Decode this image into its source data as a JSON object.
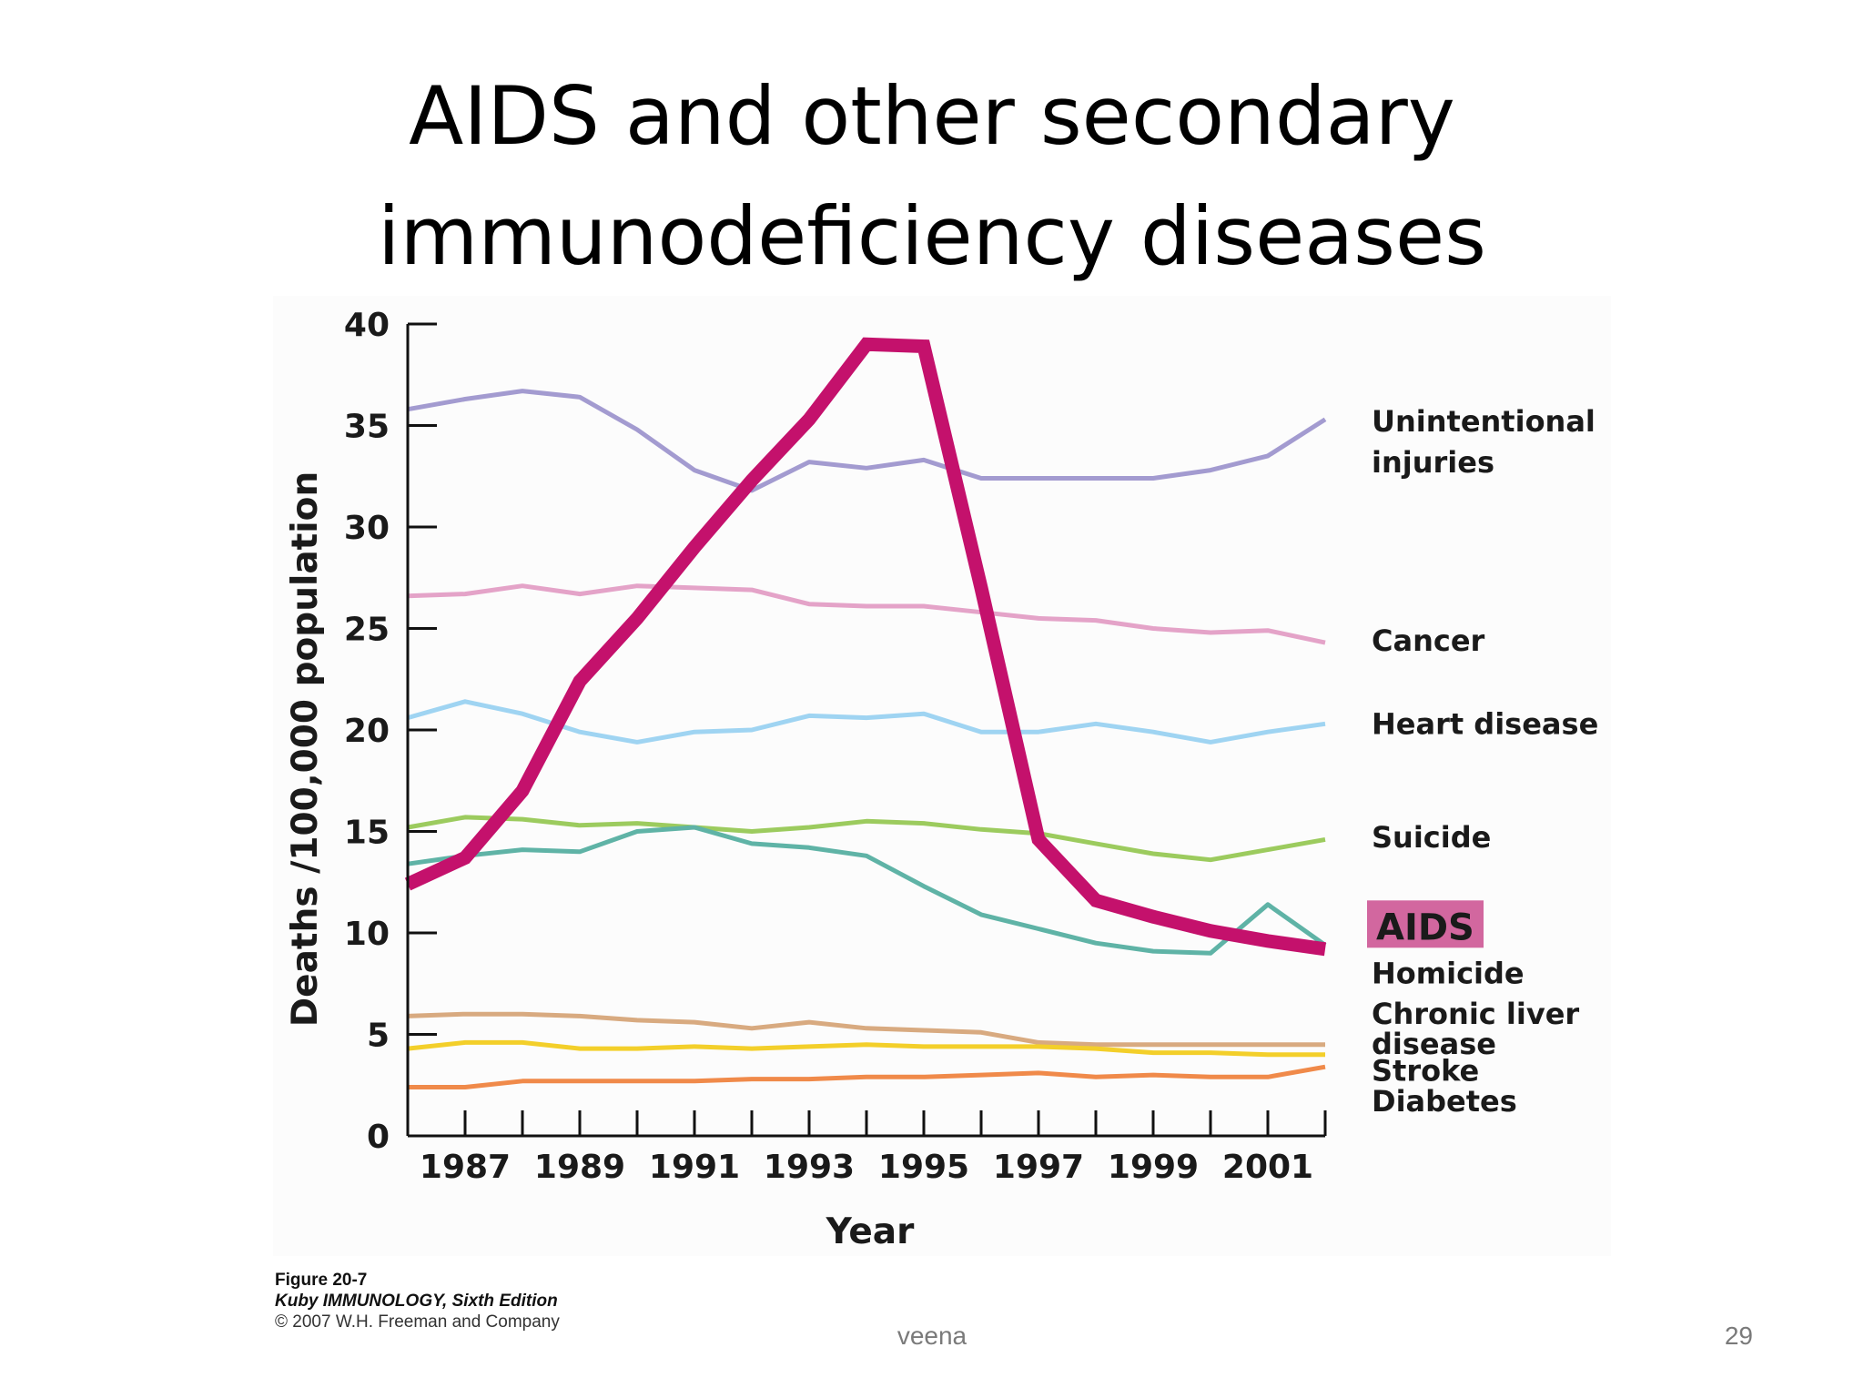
{
  "slide": {
    "title_line1": "AIDS and other secondary",
    "title_line2": "immunodeficiency diseases",
    "footer_author": "veena",
    "page_number": "29"
  },
  "figure_caption": {
    "line1": "Figure 20-7",
    "line2": "Kuby IMMUNOLOGY, Sixth Edition",
    "line3": "© 2007 W.H. Freeman and Company"
  },
  "chart_data": {
    "type": "line",
    "xlabel": "Year",
    "ylabel": "Deaths /100,000 population",
    "xlim": [
      1986,
      2002
    ],
    "ylim": [
      0,
      40
    ],
    "x_ticks": [
      1987,
      1989,
      1991,
      1993,
      1995,
      1997,
      1999,
      2001
    ],
    "y_ticks": [
      0,
      5,
      10,
      15,
      20,
      25,
      30,
      35,
      40
    ],
    "x": [
      1986,
      1987,
      1988,
      1989,
      1990,
      1991,
      1992,
      1993,
      1994,
      1995,
      1996,
      1997,
      1998,
      1999,
      2000,
      2001,
      2002
    ],
    "grid": false,
    "legend": "direct labels at right",
    "series": [
      {
        "name": "Unintentional injuries",
        "label_lines": [
          "Unintentional",
          "injuries"
        ],
        "color": "#a39bd0",
        "values": [
          35.8,
          36.3,
          36.7,
          36.4,
          34.8,
          32.8,
          31.8,
          33.2,
          32.9,
          33.3,
          32.4,
          32.4,
          32.4,
          32.4,
          32.8,
          33.5,
          35.3
        ]
      },
      {
        "name": "Cancer",
        "label_lines": [
          "Cancer"
        ],
        "color": "#e4a3c8",
        "values": [
          26.6,
          26.7,
          27.1,
          26.7,
          27.1,
          27.0,
          26.9,
          26.2,
          26.1,
          26.1,
          25.8,
          25.5,
          25.4,
          25.0,
          24.8,
          24.9,
          24.3
        ]
      },
      {
        "name": "Heart disease",
        "label_lines": [
          "Heart disease"
        ],
        "color": "#9fd4f2",
        "values": [
          20.6,
          21.4,
          20.8,
          19.9,
          19.4,
          19.9,
          20.0,
          20.7,
          20.6,
          20.8,
          19.9,
          19.9,
          20.3,
          19.9,
          19.4,
          19.9,
          20.3
        ]
      },
      {
        "name": "Suicide",
        "label_lines": [
          "Suicide"
        ],
        "color": "#9ccb5e",
        "values": [
          15.2,
          15.7,
          15.6,
          15.3,
          15.4,
          15.2,
          15.0,
          15.2,
          15.5,
          15.4,
          15.1,
          14.9,
          14.4,
          13.9,
          13.6,
          14.1,
          14.6
        ]
      },
      {
        "name": "Homicide",
        "label_lines": [
          "Homicide"
        ],
        "color": "#5fb3a6",
        "values": [
          13.4,
          13.8,
          14.1,
          14.0,
          15.0,
          15.2,
          14.4,
          14.2,
          13.8,
          12.3,
          10.9,
          10.2,
          9.5,
          9.1,
          9.0,
          11.4,
          9.4
        ]
      },
      {
        "name": "Chronic liver disease",
        "label_lines": [
          "Chronic liver",
          "disease"
        ],
        "color": "#d8aa80",
        "values": [
          5.9,
          6.0,
          6.0,
          5.9,
          5.7,
          5.6,
          5.3,
          5.6,
          5.3,
          5.2,
          5.1,
          4.6,
          4.5,
          4.5,
          4.5,
          4.5,
          4.5
        ]
      },
      {
        "name": "Stroke",
        "label_lines": [
          "Stroke"
        ],
        "color": "#f3cf2a",
        "values": [
          4.3,
          4.6,
          4.6,
          4.3,
          4.3,
          4.4,
          4.3,
          4.4,
          4.5,
          4.4,
          4.4,
          4.4,
          4.3,
          4.1,
          4.1,
          4.0,
          4.0
        ]
      },
      {
        "name": "Diabetes",
        "label_lines": [
          "Diabetes"
        ],
        "color": "#f08a4a",
        "values": [
          2.4,
          2.4,
          2.7,
          2.7,
          2.7,
          2.7,
          2.8,
          2.8,
          2.9,
          2.9,
          3.0,
          3.1,
          2.9,
          3.0,
          2.9,
          2.9,
          3.4
        ]
      },
      {
        "name": "AIDS",
        "label_lines": [
          "AIDS"
        ],
        "color": "#c4116c",
        "highlight": true,
        "values": [
          12.4,
          13.7,
          17.0,
          22.4,
          25.5,
          29.0,
          32.3,
          35.3,
          39.0,
          38.9,
          27.0,
          14.6,
          11.6,
          10.8,
          10.1,
          9.6,
          9.2
        ]
      }
    ]
  }
}
